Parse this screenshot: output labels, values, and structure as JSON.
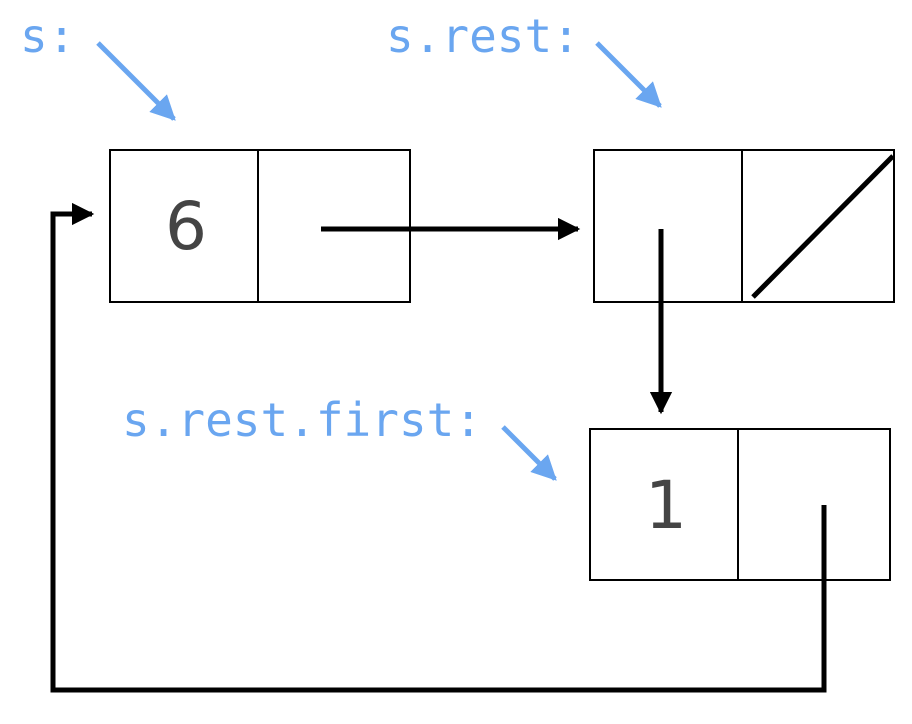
{
  "colors": {
    "label": "#6aa6f0",
    "value": "#444444",
    "box_stroke": "#000000",
    "arrow": "#000000"
  },
  "labels": {
    "s": "s:",
    "s_rest": "s.rest:",
    "s_rest_first": "s.rest.first:"
  },
  "cells": {
    "box1_first": "6",
    "box1_rest": "",
    "box2_first": "",
    "box2_rest": "",
    "box3_first": "1",
    "box3_rest": ""
  }
}
